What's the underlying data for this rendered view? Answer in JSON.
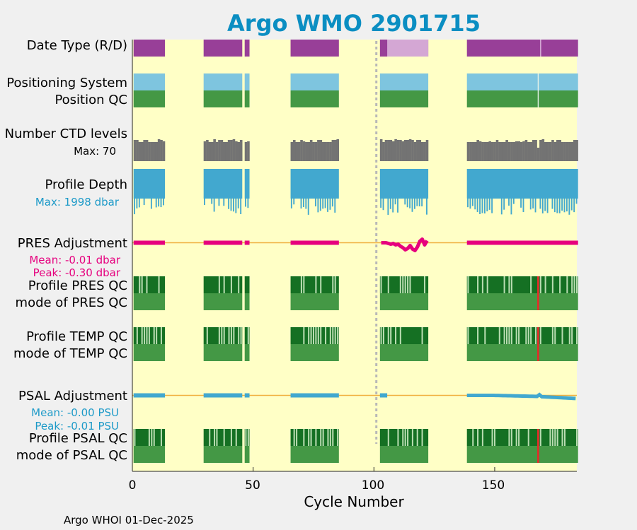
{
  "chart_data": {
    "type": "timeline",
    "title": "Argo WMO 2901715",
    "xlabel": "Cycle Number",
    "xlim": [
      0,
      184
    ],
    "xticks": [
      0,
      50,
      100,
      150
    ],
    "xtick_labels": [
      "0",
      "50",
      "100",
      "150"
    ],
    "marker_cycle": 101,
    "credit": "Argo WHOI 01-Dec-2025",
    "cycle_segments": [
      [
        1,
        13
      ],
      [
        30,
        45
      ],
      [
        47,
        48
      ],
      [
        66,
        85
      ],
      [
        103,
        122
      ],
      [
        139,
        184
      ]
    ],
    "rows": [
      {
        "key": "data_type",
        "label": "Date Type (R/D)",
        "color": "#983f98",
        "alt_color": "#d4a7d4",
        "alt_ranges": [
          [
            106,
            122
          ]
        ],
        "note_cycles": [
          169
        ]
      },
      {
        "key": "positioning_system",
        "label": "Positioning System",
        "color": "#7ec5df"
      },
      {
        "key": "position_qc",
        "label": "Position QC",
        "color": "#449845"
      },
      {
        "key": "ctd_levels",
        "label": "Number CTD levels",
        "max_label": "Max: 70",
        "max_value": 70,
        "color": "#737373"
      },
      {
        "key": "profile_depth",
        "label": "Profile Depth",
        "max_label": "Max: 1998 dbar",
        "max_value": 1998,
        "unit": "dbar",
        "color": "#42a8cf"
      },
      {
        "key": "pres_adjustment",
        "label": "PRES Adjustment",
        "mean_label": "Mean: -0.01 dbar",
        "peak_label": "Peak: -0.30 dbar",
        "mean": -0.01,
        "peak": -0.3,
        "unit": "dbar",
        "color": "#e6007e"
      },
      {
        "key": "profile_pres_qc",
        "label": "Profile PRES QC",
        "color": "#157023"
      },
      {
        "key": "mode_pres_qc",
        "label": "mode of PRES QC",
        "color": "#449845"
      },
      {
        "key": "profile_temp_qc",
        "label": "Profile TEMP QC",
        "color": "#157023"
      },
      {
        "key": "mode_temp_qc",
        "label": "mode of TEMP QC",
        "color": "#449845"
      },
      {
        "key": "psal_adjustment",
        "label": "PSAL Adjustment",
        "mean_label": "Mean: -0.00 PSU",
        "peak_label": "Peak: -0.01 PSU",
        "mean": -0.0,
        "peak": -0.01,
        "unit": "PSU",
        "color": "#42a8cf"
      },
      {
        "key": "profile_psal_qc",
        "label": "Profile PSAL QC",
        "color": "#157023"
      },
      {
        "key": "mode_psal_qc",
        "label": "mode of PSAL QC",
        "color": "#449845"
      }
    ],
    "qc_flag_cycles": [
      168
    ],
    "colors": {
      "background": "#ffffc6",
      "figure": "#f0f0f0",
      "title": "#0b8ec2",
      "zero_line": "#f0b040",
      "qc_light": "#b8dcb0",
      "qc_flag": "#e0302a",
      "marker": "#b8b8b8",
      "pres_text": "#e6007e",
      "psal_text": "#1d9ac8",
      "depth_text": "#1d9ac8"
    }
  }
}
